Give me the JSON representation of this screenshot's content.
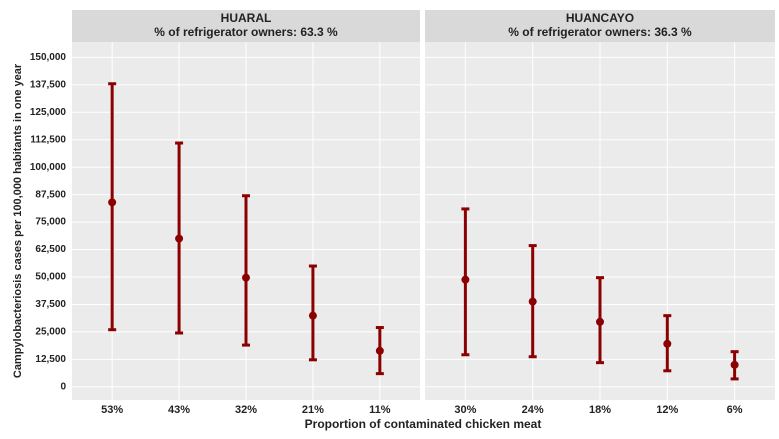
{
  "chart_data": {
    "type": "errorbar",
    "y_label": "Campylobacteriosis cases per 100,000 habitants in one year",
    "x_label": "Proportion of contaminated chicken meat",
    "color": "#8b0000",
    "ylim": [
      -6000,
      157000
    ],
    "yticks": [
      0,
      {
        "value": 12500,
        "label": "12,500"
      },
      {
        "value": 25000,
        "label": "25,000"
      },
      {
        "value": 37500,
        "label": "37,500"
      },
      {
        "value": 50000,
        "label": "50,000"
      },
      {
        "value": 62500,
        "label": "62,500"
      },
      {
        "value": 75000,
        "label": "75,000"
      },
      {
        "value": 87500,
        "label": "87,500"
      },
      {
        "value": 100000,
        "label": "100,000"
      },
      {
        "value": 112500,
        "label": "112,500"
      },
      {
        "value": 125000,
        "label": "125,000"
      },
      {
        "value": 137500,
        "label": "137,500"
      },
      {
        "value": 150000,
        "label": "150,000"
      }
    ],
    "grid": true,
    "panels": [
      {
        "title": "HUARAL",
        "subtitle": "% of refrigerator owners: 63.3 %",
        "categories": [
          "53%",
          "43%",
          "32%",
          "21%",
          "11%"
        ],
        "values": [
          84000,
          67500,
          49700,
          32400,
          16400
        ],
        "lower": [
          26000,
          24500,
          19000,
          12300,
          6000
        ],
        "upper": [
          138000,
          111000,
          87000,
          55000,
          27000
        ]
      },
      {
        "title": "HUANCAYO",
        "subtitle": "% of refrigerator owners: 36.3 %",
        "categories": [
          "30%",
          "24%",
          "18%",
          "12%",
          "6%"
        ],
        "values": [
          48800,
          38800,
          29600,
          19600,
          10000
        ],
        "lower": [
          14600,
          13700,
          11000,
          7300,
          3600
        ],
        "upper": [
          81000,
          64300,
          49700,
          32400,
          16000
        ]
      }
    ]
  }
}
